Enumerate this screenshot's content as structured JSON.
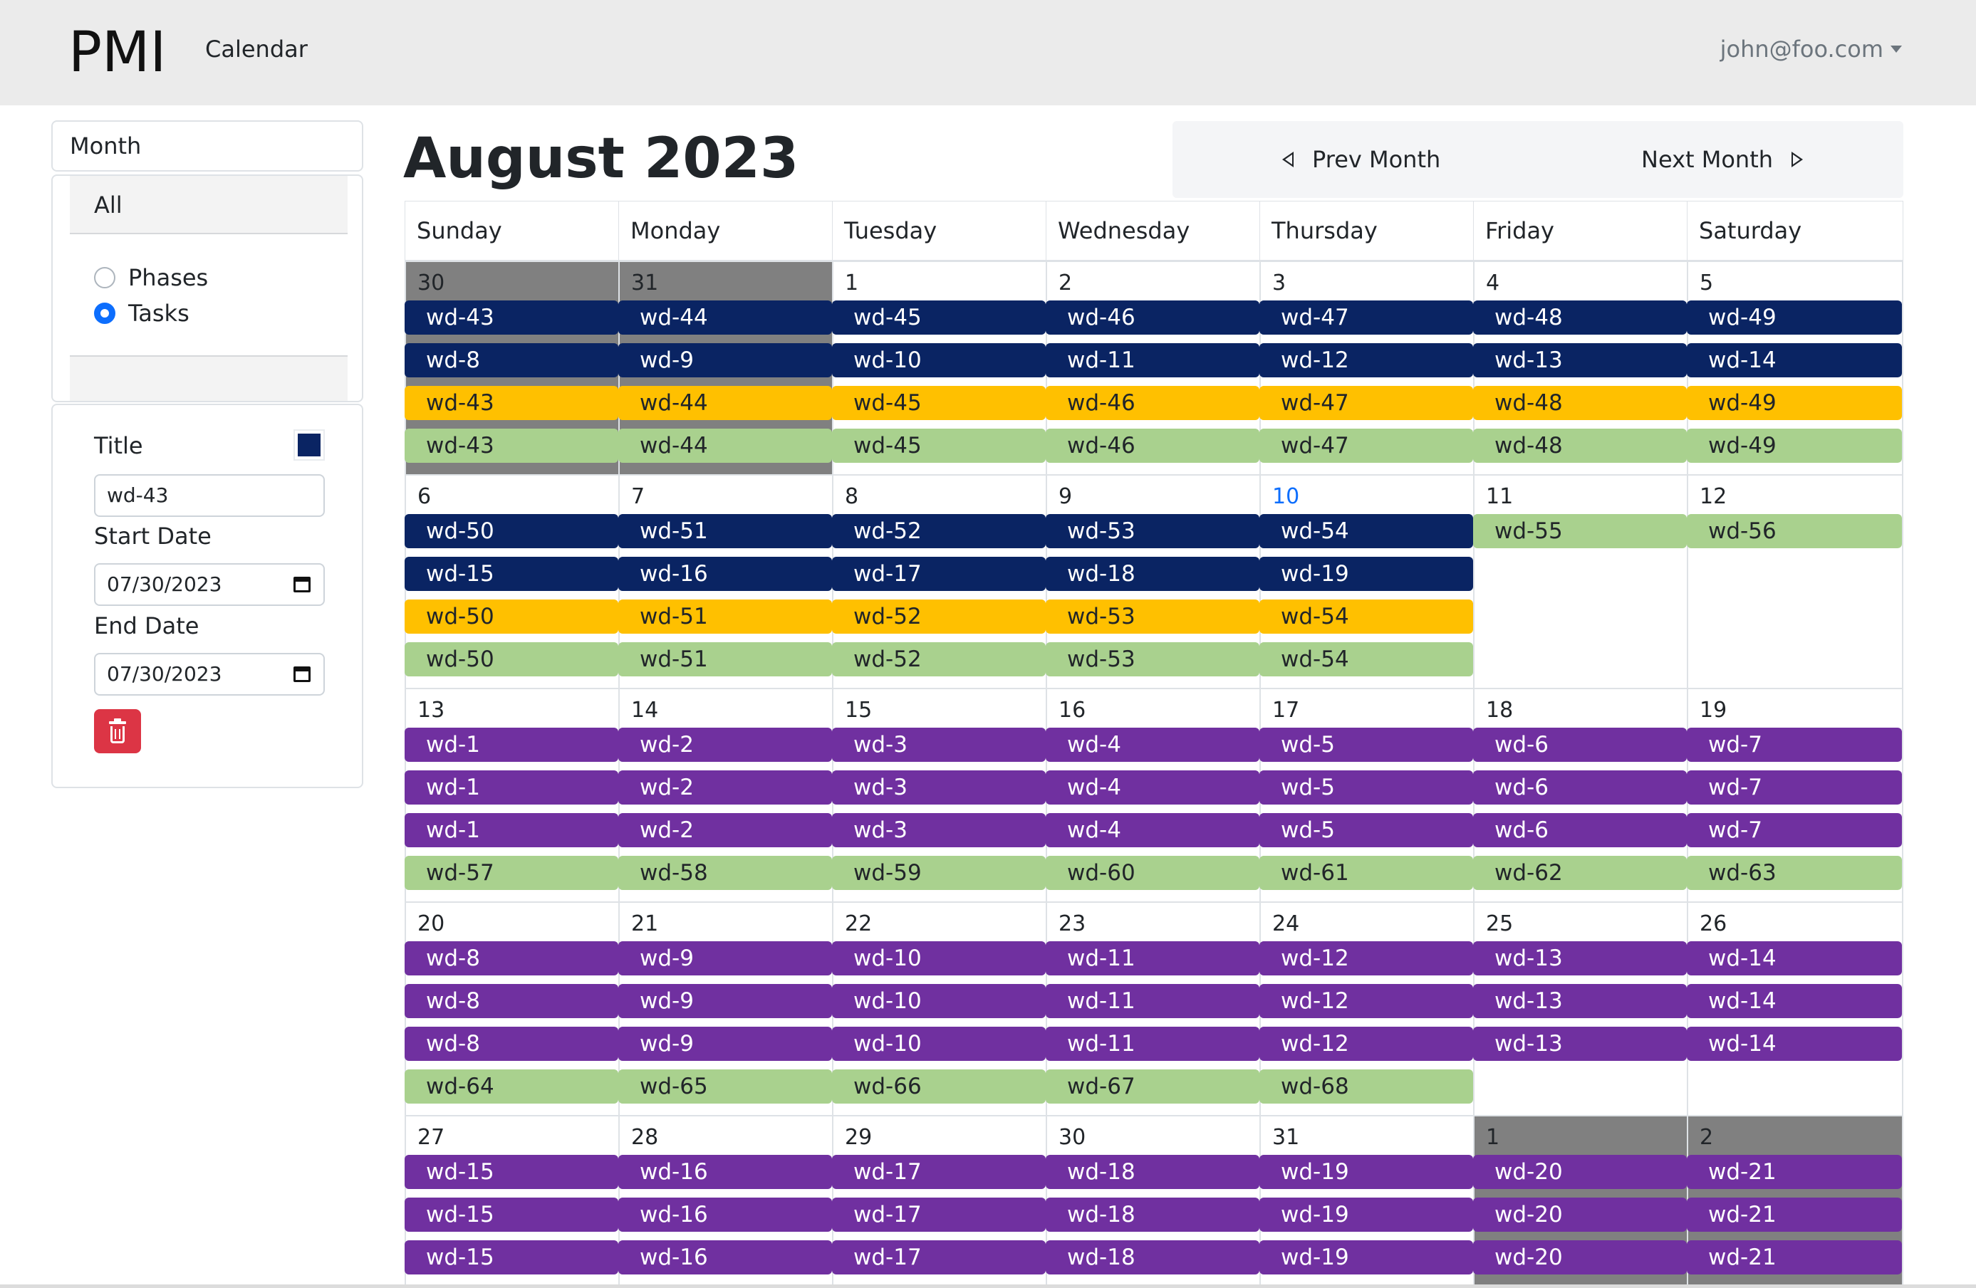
{
  "navbar": {
    "brand": "PMI",
    "calendar_link": "Calendar",
    "user": "john@foo.com"
  },
  "sidebar": {
    "view_select": "Month",
    "filter": {
      "header": "All",
      "options": [
        {
          "label": "Phases",
          "checked": false
        },
        {
          "label": "Tasks",
          "checked": true
        }
      ]
    },
    "detail": {
      "title_label": "Title",
      "title_value": "wd-43",
      "color": "#0a2463",
      "start_label": "Start Date",
      "start_value": "07/30/2023",
      "end_label": "End Date",
      "end_value": "07/30/2023",
      "delete_icon": "trash-icon"
    }
  },
  "calendar": {
    "title": "August 2023",
    "prev_label": "Prev Month",
    "next_label": "Next Month",
    "weekdays": [
      "Sunday",
      "Monday",
      "Tuesday",
      "Wednesday",
      "Thursday",
      "Friday",
      "Saturday"
    ],
    "colors": {
      "navy": "#0a2463",
      "gold": "#ffc000",
      "green": "#a9d18e",
      "purple": "#7030a0",
      "other_month": "#808080",
      "today": "#0d6efd"
    },
    "weeks": [
      {
        "days": [
          {
            "num": "30",
            "other": true
          },
          {
            "num": "31",
            "other": true
          },
          {
            "num": "1"
          },
          {
            "num": "2"
          },
          {
            "num": "3"
          },
          {
            "num": "4"
          },
          {
            "num": "5"
          }
        ],
        "rows": [
          {
            "color": "navy",
            "labels": [
              "wd-43",
              "wd-44",
              "wd-45",
              "wd-46",
              "wd-47",
              "wd-48",
              "wd-49"
            ]
          },
          {
            "color": "navy",
            "labels": [
              "wd-8",
              "wd-9",
              "wd-10",
              "wd-11",
              "wd-12",
              "wd-13",
              "wd-14"
            ]
          },
          {
            "color": "gold",
            "labels": [
              "wd-43",
              "wd-44",
              "wd-45",
              "wd-46",
              "wd-47",
              "wd-48",
              "wd-49"
            ]
          },
          {
            "color": "green",
            "labels": [
              "wd-43",
              "wd-44",
              "wd-45",
              "wd-46",
              "wd-47",
              "wd-48",
              "wd-49"
            ]
          }
        ]
      },
      {
        "days": [
          {
            "num": "6"
          },
          {
            "num": "7"
          },
          {
            "num": "8"
          },
          {
            "num": "9"
          },
          {
            "num": "10",
            "today": true
          },
          {
            "num": "11"
          },
          {
            "num": "12"
          }
        ],
        "rows": [
          {
            "color": "navy",
            "labels": [
              "wd-50",
              "wd-51",
              "wd-52",
              "wd-53",
              "wd-54"
            ]
          },
          {
            "color": "green",
            "start": 5,
            "labels": [
              "wd-55",
              "wd-56"
            ]
          },
          {
            "color": "navy",
            "labels": [
              "wd-15",
              "wd-16",
              "wd-17",
              "wd-18",
              "wd-19"
            ]
          },
          {
            "color": "gold",
            "labels": [
              "wd-50",
              "wd-51",
              "wd-52",
              "wd-53",
              "wd-54"
            ]
          },
          {
            "color": "green",
            "labels": [
              "wd-50",
              "wd-51",
              "wd-52",
              "wd-53",
              "wd-54"
            ]
          }
        ]
      },
      {
        "days": [
          {
            "num": "13"
          },
          {
            "num": "14"
          },
          {
            "num": "15"
          },
          {
            "num": "16"
          },
          {
            "num": "17"
          },
          {
            "num": "18"
          },
          {
            "num": "19"
          }
        ],
        "rows": [
          {
            "color": "purple",
            "labels": [
              "wd-1",
              "wd-2",
              "wd-3",
              "wd-4",
              "wd-5",
              "wd-6",
              "wd-7"
            ]
          },
          {
            "color": "purple",
            "labels": [
              "wd-1",
              "wd-2",
              "wd-3",
              "wd-4",
              "wd-5",
              "wd-6",
              "wd-7"
            ]
          },
          {
            "color": "purple",
            "labels": [
              "wd-1",
              "wd-2",
              "wd-3",
              "wd-4",
              "wd-5",
              "wd-6",
              "wd-7"
            ]
          },
          {
            "color": "green",
            "labels": [
              "wd-57",
              "wd-58",
              "wd-59",
              "wd-60",
              "wd-61",
              "wd-62",
              "wd-63"
            ]
          }
        ]
      },
      {
        "days": [
          {
            "num": "20"
          },
          {
            "num": "21"
          },
          {
            "num": "22"
          },
          {
            "num": "23"
          },
          {
            "num": "24"
          },
          {
            "num": "25"
          },
          {
            "num": "26"
          }
        ],
        "rows": [
          {
            "color": "purple",
            "labels": [
              "wd-8",
              "wd-9",
              "wd-10",
              "wd-11",
              "wd-12",
              "wd-13",
              "wd-14"
            ]
          },
          {
            "color": "purple",
            "labels": [
              "wd-8",
              "wd-9",
              "wd-10",
              "wd-11",
              "wd-12",
              "wd-13",
              "wd-14"
            ]
          },
          {
            "color": "purple",
            "labels": [
              "wd-8",
              "wd-9",
              "wd-10",
              "wd-11",
              "wd-12",
              "wd-13",
              "wd-14"
            ]
          },
          {
            "color": "green",
            "labels": [
              "wd-64",
              "wd-65",
              "wd-66",
              "wd-67",
              "wd-68"
            ]
          }
        ]
      },
      {
        "days": [
          {
            "num": "27"
          },
          {
            "num": "28"
          },
          {
            "num": "29"
          },
          {
            "num": "30"
          },
          {
            "num": "31"
          },
          {
            "num": "1",
            "other": true
          },
          {
            "num": "2",
            "other": true
          }
        ],
        "rows": [
          {
            "color": "purple",
            "labels": [
              "wd-15",
              "wd-16",
              "wd-17",
              "wd-18",
              "wd-19",
              "wd-20",
              "wd-21"
            ]
          },
          {
            "color": "purple",
            "labels": [
              "wd-15",
              "wd-16",
              "wd-17",
              "wd-18",
              "wd-19",
              "wd-20",
              "wd-21"
            ]
          },
          {
            "color": "purple",
            "labels": [
              "wd-15",
              "wd-16",
              "wd-17",
              "wd-18",
              "wd-19",
              "wd-20",
              "wd-21"
            ]
          }
        ]
      }
    ]
  }
}
